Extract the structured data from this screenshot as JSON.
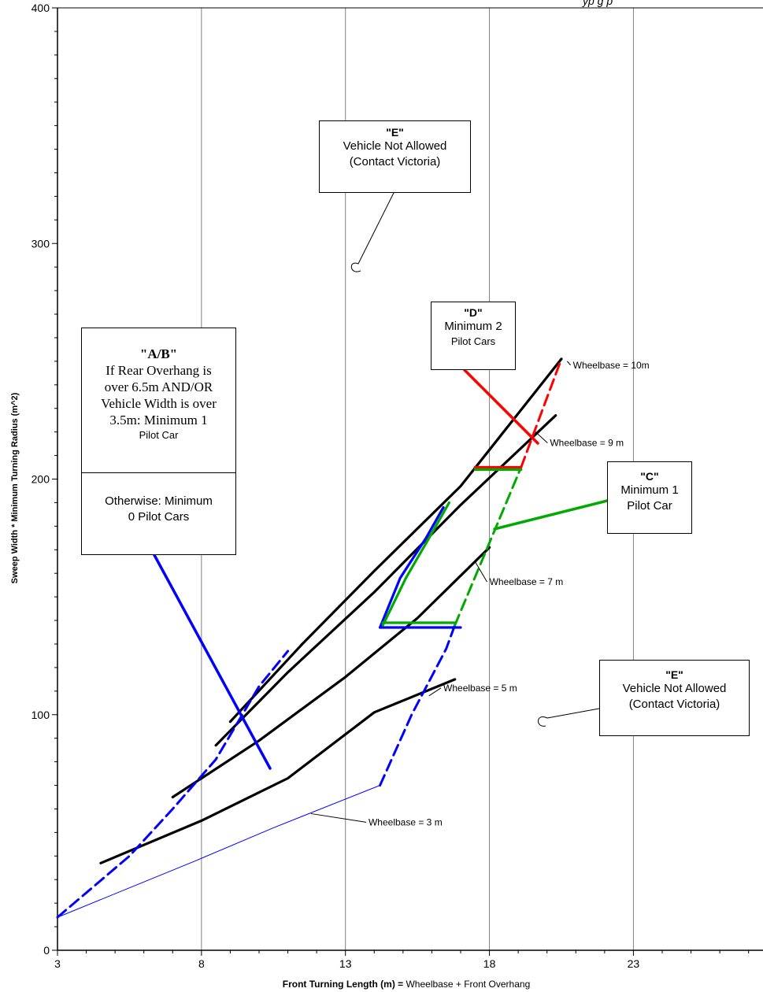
{
  "header_fragment": "yp g p",
  "chart_data": {
    "type": "line",
    "xlabel": "Front Turning Length (m) = Wheelbase + Front Overhang",
    "ylabel": "Sweep Width * Minimum Turning Radius (m^2)",
    "xlim": [
      3,
      27.5
    ],
    "ylim": [
      0,
      400
    ],
    "x_ticks": [
      "3",
      "8",
      "13",
      "18",
      "23"
    ],
    "y_ticks": [
      "0",
      "100",
      "200",
      "300",
      "400"
    ],
    "grid": "vertical",
    "series": [
      {
        "name": "Wheelbase = 3 m",
        "color": "#0000ff",
        "style": "solid-thin",
        "points": [
          [
            3,
            14
          ],
          [
            7.8,
            38
          ],
          [
            10.5,
            52
          ],
          [
            14.2,
            70
          ]
        ]
      },
      {
        "name": "Wheelbase = 5 m",
        "color": "#000000",
        "style": "solid",
        "points": [
          [
            4.5,
            37
          ],
          [
            8,
            55
          ],
          [
            11,
            73
          ],
          [
            14,
            101
          ],
          [
            16.8,
            115
          ]
        ]
      },
      {
        "name": "Wheelbase = 7 m",
        "color": "#000000",
        "style": "solid",
        "points": [
          [
            7,
            65
          ],
          [
            10,
            89
          ],
          [
            13,
            116
          ],
          [
            15.5,
            141
          ],
          [
            18,
            171
          ]
        ]
      },
      {
        "name": "Wheelbase = 9 m",
        "color": "#000000",
        "style": "solid",
        "points": [
          [
            8.5,
            87
          ],
          [
            11,
            118
          ],
          [
            14,
            152
          ],
          [
            17,
            189
          ],
          [
            20.3,
            227
          ]
        ]
      },
      {
        "name": "Wheelbase = 10m",
        "color": "#000000",
        "style": "solid",
        "points": [
          [
            9,
            97
          ],
          [
            11.5,
            130
          ],
          [
            14,
            161
          ],
          [
            17,
            197
          ],
          [
            20.5,
            251
          ]
        ]
      },
      {
        "name": "",
        "color": "#0000ff",
        "style": "dashed",
        "points": [
          [
            3,
            14
          ],
          [
            5.5,
            40
          ],
          [
            7,
            60
          ],
          [
            8.5,
            81
          ],
          [
            10,
            112
          ],
          [
            11,
            127
          ]
        ]
      },
      {
        "name": "",
        "color": "#0000ff",
        "style": "dashed",
        "points": [
          [
            14.2,
            70
          ],
          [
            15.3,
            100
          ],
          [
            16.5,
            128
          ],
          [
            16.8,
            138
          ]
        ]
      },
      {
        "name": "",
        "color": "#00aa00",
        "style": "dashed",
        "points": [
          [
            16.8,
            138
          ],
          [
            19.1,
            205
          ]
        ]
      },
      {
        "name": "",
        "color": "#ff0000",
        "style": "dashed",
        "points": [
          [
            19.1,
            205
          ],
          [
            20.5,
            251
          ]
        ]
      },
      {
        "name": "",
        "color": "#ff0000",
        "style": "solid",
        "points": [
          [
            17.5,
            205
          ],
          [
            19.1,
            205
          ]
        ]
      },
      {
        "name": "",
        "color": "#00aa00",
        "style": "solid",
        "points": [
          [
            17.5,
            204
          ],
          [
            19.1,
            204
          ]
        ]
      },
      {
        "name": "",
        "color": "#0000ff",
        "style": "solid",
        "points": [
          [
            14.2,
            137
          ],
          [
            14.9,
            158
          ],
          [
            15.8,
            175
          ],
          [
            16.4,
            188
          ]
        ]
      },
      {
        "name": "",
        "color": "#00aa00",
        "style": "solid",
        "points": [
          [
            14.3,
            138
          ],
          [
            15.1,
            158
          ],
          [
            16,
            177
          ],
          [
            16.6,
            190
          ]
        ]
      },
      {
        "name": "",
        "color": "#0000ff",
        "style": "solid",
        "points": [
          [
            14.2,
            137
          ],
          [
            17,
            137
          ]
        ]
      },
      {
        "name": "",
        "color": "#00aa00",
        "style": "solid",
        "points": [
          [
            14.3,
            139
          ],
          [
            16.8,
            139
          ]
        ]
      }
    ],
    "zone_labels": [
      {
        "id": "E-top",
        "code": "\"E\"",
        "lines": [
          "Vehicle Not Allowed",
          "(Contact Victoria)"
        ]
      },
      {
        "id": "D",
        "code": "\"D\"",
        "lines": [
          "Minimum 2",
          "Pilot Cars"
        ]
      },
      {
        "id": "AB",
        "code": "\"A/B\"",
        "lines": [
          "If Rear Overhang is",
          "over 6.5m AND/OR",
          "Vehicle Width is over",
          "3.5m: Minimum 1",
          "Pilot Car"
        ],
        "lines2": [
          "Otherwise: Minimum",
          "0 Pilot Cars"
        ]
      },
      {
        "id": "C",
        "code": "\"C\"",
        "lines": [
          "Minimum 1",
          "Pilot Car"
        ]
      },
      {
        "id": "E-bottom",
        "code": "\"E\"",
        "lines": [
          "Vehicle Not Allowed",
          "(Contact Victoria)"
        ]
      }
    ]
  },
  "colors": {
    "blue": "#0000ff",
    "green": "#00aa00",
    "red": "#ff0000",
    "black": "#000000",
    "grid": "#808080"
  }
}
